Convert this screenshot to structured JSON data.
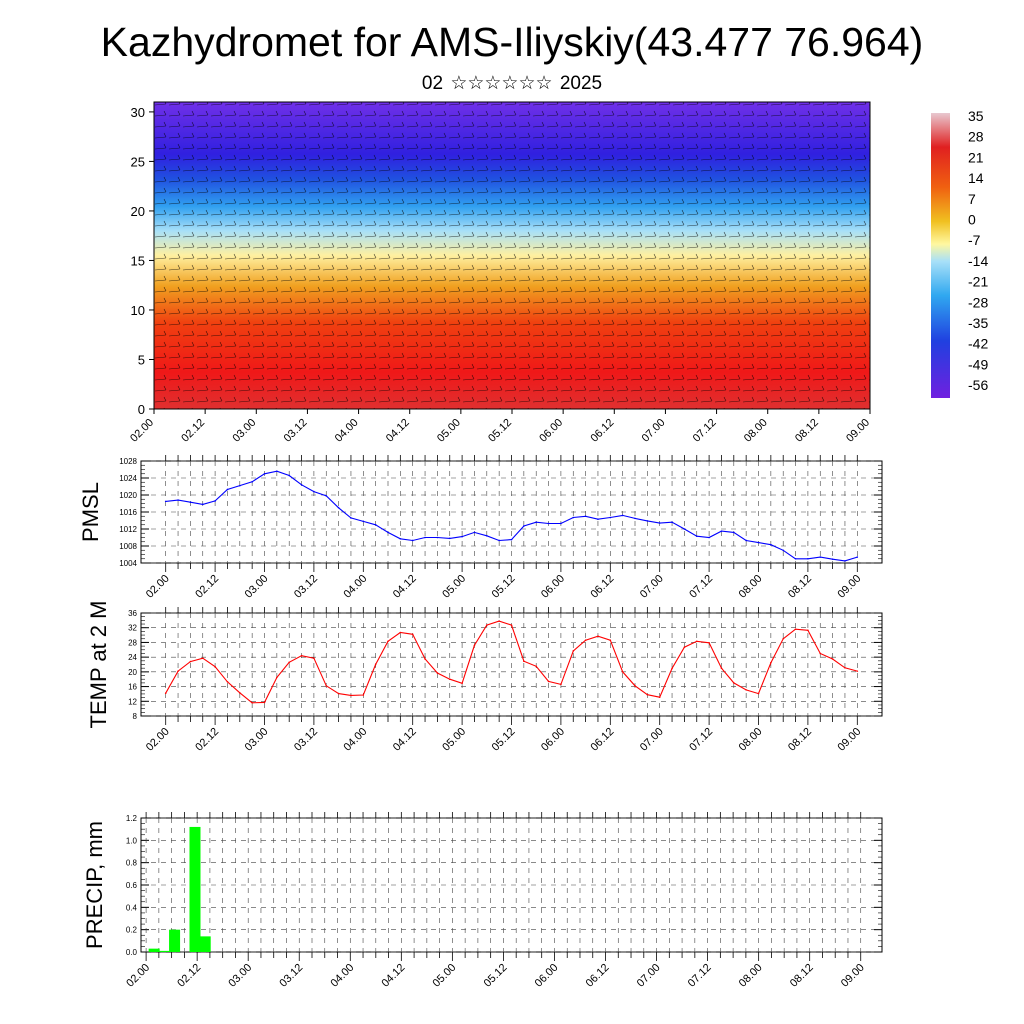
{
  "title": "Kazhydromet for AMS-Iliyskiy(43.477 76.964)",
  "subtitle": {
    "day": "02",
    "month": "☆☆☆☆☆☆",
    "year": "2025"
  },
  "colors": {
    "pmsl_line": "#0000ff",
    "temp_line": "#ff0000",
    "precip_bar": "#00ff00",
    "colorbar_stops": [
      "#e0c0c8",
      "#e02020",
      "#f07010",
      "#f0c020",
      "#fff8a0",
      "#a0e0f8",
      "#30a8f0",
      "#2040e0",
      "#6020e0"
    ]
  },
  "chart_data": [
    {
      "type": "heatmap",
      "name": "vertical-profile",
      "ylim": [
        0,
        31
      ],
      "yticks": [
        0,
        5,
        10,
        15,
        20,
        25,
        30
      ],
      "xticks": [
        "02.00",
        "02.12",
        "03.00",
        "03.12",
        "04.00",
        "04.12",
        "05.00",
        "05.12",
        "06.00",
        "06.12",
        "07.00",
        "07.12",
        "08.00",
        "08.12",
        "09.00"
      ],
      "colorbar_labels": [
        "35",
        "28",
        "21",
        "14",
        "7",
        "0",
        "-7",
        "-14",
        "-21",
        "-28",
        "-35",
        "-42",
        "-49",
        "-56"
      ],
      "vectors": "wind barbs overlay"
    },
    {
      "type": "line",
      "name": "pmsl",
      "ylabel": "PMSL",
      "ylim": [
        1004,
        1028
      ],
      "yticks": [
        "1004",
        "1008",
        "1012",
        "1016",
        "1020",
        "1024",
        "1028"
      ],
      "xticks": [
        "02.00",
        "02.12",
        "03.00",
        "03.12",
        "04.00",
        "04.12",
        "05.00",
        "05.12",
        "06.00",
        "06.12",
        "07.00",
        "07.12",
        "08.00",
        "08.12",
        "09.00"
      ],
      "x": [
        0,
        3,
        6,
        9,
        12,
        15,
        18,
        21,
        24,
        27,
        30,
        33,
        36,
        39,
        42,
        45,
        48,
        51,
        54,
        57,
        60,
        63,
        66,
        69,
        72,
        75,
        78,
        81,
        84,
        87,
        90,
        93,
        96,
        99,
        102,
        105,
        108,
        111,
        114,
        117,
        120,
        123,
        126,
        129,
        132,
        135,
        138,
        141,
        144,
        147,
        150,
        153,
        156,
        159,
        162,
        165,
        168
      ],
      "values": [
        1018.5,
        1018.8,
        1018.3,
        1017.8,
        1018.6,
        1021.3,
        1022.2,
        1023.1,
        1025.0,
        1025.6,
        1024.6,
        1022.4,
        1020.8,
        1019.8,
        1017.0,
        1014.6,
        1013.8,
        1013.0,
        1011.2,
        1009.7,
        1009.3,
        1010.0,
        1010.0,
        1009.8,
        1010.2,
        1011.2,
        1010.4,
        1009.3,
        1009.5,
        1012.7,
        1013.6,
        1013.3,
        1013.3,
        1014.7,
        1015.0,
        1014.3,
        1014.7,
        1015.2,
        1014.5,
        1013.9,
        1013.4,
        1013.6,
        1012.0,
        1010.3,
        1010.0,
        1011.5,
        1011.2,
        1009.3,
        1008.8,
        1008.3,
        1007.0,
        1005.0,
        1005.0,
        1005.4,
        1004.9,
        1004.5,
        1005.4
      ]
    },
    {
      "type": "line",
      "name": "temp-2m",
      "ylabel": "TEMP at 2 M",
      "ylim": [
        8,
        36
      ],
      "yticks": [
        "8",
        "12",
        "16",
        "20",
        "24",
        "28",
        "32",
        "36"
      ],
      "xticks": [
        "02.00",
        "02.12",
        "03.00",
        "03.12",
        "04.00",
        "04.12",
        "05.00",
        "05.12",
        "06.00",
        "06.12",
        "07.00",
        "07.12",
        "08.00",
        "08.12",
        "09.00"
      ],
      "x": [
        0,
        3,
        6,
        9,
        12,
        15,
        18,
        21,
        24,
        27,
        30,
        33,
        36,
        39,
        42,
        45,
        48,
        51,
        54,
        57,
        60,
        63,
        66,
        69,
        72,
        75,
        78,
        81,
        84,
        87,
        90,
        93,
        96,
        99,
        102,
        105,
        108,
        111,
        114,
        117,
        120,
        123,
        126,
        129,
        132,
        135,
        138,
        141,
        144,
        147,
        150,
        153,
        156,
        159,
        162,
        165,
        168
      ],
      "values": [
        14.2,
        20.2,
        22.8,
        23.7,
        21.4,
        17.3,
        14.3,
        11.6,
        11.7,
        18.5,
        22.6,
        24.4,
        23.7,
        16.2,
        14.1,
        13.6,
        13.7,
        22.0,
        28.3,
        30.7,
        30.2,
        23.5,
        19.7,
        18.0,
        16.9,
        27.2,
        32.7,
        33.8,
        32.7,
        22.9,
        21.5,
        17.4,
        16.6,
        25.7,
        28.6,
        29.7,
        28.6,
        20.0,
        16.2,
        13.8,
        13.1,
        20.9,
        26.7,
        28.3,
        27.9,
        21.0,
        17.0,
        15.1,
        14.1,
        22.5,
        29.0,
        31.6,
        31.3,
        25.0,
        23.5,
        21.1,
        20.2
      ]
    },
    {
      "type": "bar",
      "name": "precip",
      "ylabel": "PRECIP, mm",
      "ylim": [
        0,
        1.2
      ],
      "yticks": [
        "0.0",
        "0.2",
        "0.4",
        "0.6",
        "0.8",
        "1.0",
        "1.2"
      ],
      "xticks": [
        "02.00",
        "02.12",
        "03.00",
        "03.12",
        "04.00",
        "04.12",
        "05.00",
        "05.12",
        "06.00",
        "06.12",
        "07.00",
        "07.12",
        "08.00",
        "08.12",
        "09.00"
      ],
      "bars": [
        {
          "x": 0.6,
          "value": 0.03
        },
        {
          "x": 3.0,
          "value": 0.01
        },
        {
          "x": 5.4,
          "value": 0.2
        },
        {
          "x": 7.8,
          "value": 0.0
        },
        {
          "x": 10.2,
          "value": 1.12
        },
        {
          "x": 12.6,
          "value": 0.14
        }
      ]
    }
  ]
}
